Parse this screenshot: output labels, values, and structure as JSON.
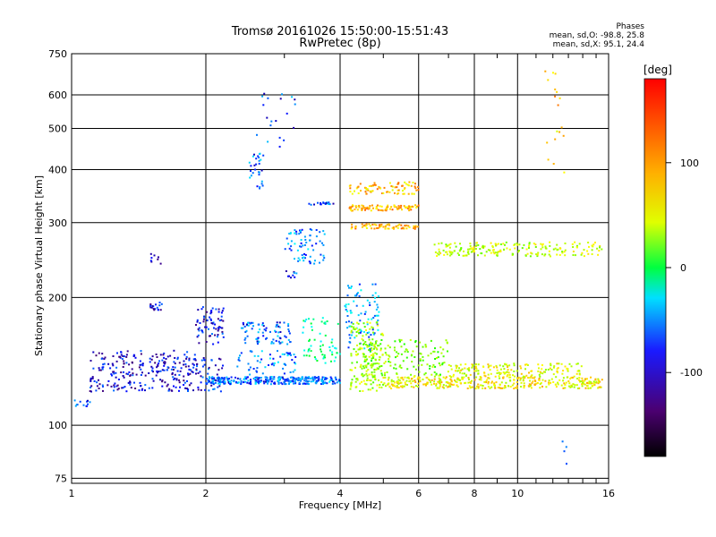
{
  "header": {
    "title_line1": "Tromsø 20161026 15:50:00-15:51:43",
    "title_line2": "RwPretec (8p)",
    "stats_title": "Phases",
    "stats_o": "mean, sd,O: -98.8, 25.8",
    "stats_x": "mean, sd,X:  95.1, 24.4"
  },
  "colors": {
    "axis": "#000000",
    "grid": "#000000",
    "background": "#ffffff"
  },
  "chart_data": {
    "type": "scatter",
    "title": "Tromsø 20161026 15:50:00-15:51:43",
    "subtitle": "RwPretec (8p)",
    "xlabel": "Frequency [MHz]",
    "ylabel": "Stationary phase Virtual Height [km]",
    "xscale": "log",
    "yscale": "log",
    "xlim": [
      1,
      16
    ],
    "ylim": [
      73,
      750
    ],
    "xticks": [
      1,
      2,
      4,
      6,
      8,
      10,
      16
    ],
    "xtick_labels": [
      "1",
      "2",
      "4",
      "6",
      "8",
      "10",
      "16"
    ],
    "yticks": [
      75,
      100,
      200,
      300,
      400,
      500,
      600,
      750
    ],
    "ytick_labels": [
      "75",
      "100",
      "200",
      "300",
      "400",
      "500",
      "600",
      "750"
    ],
    "grid": true,
    "colorbar": {
      "label": "[deg]",
      "range": [
        -180,
        180
      ],
      "ticks": [
        100,
        0,
        -100
      ],
      "tick_labels": [
        "100",
        "0",
        "-100"
      ]
    },
    "clusters": [
      {
        "x": [
          1.0,
          1.1
        ],
        "y": [
          110,
          115
        ],
        "phase": -110,
        "n": 12
      },
      {
        "x": [
          1.1,
          1.9
        ],
        "y": [
          120,
          150
        ],
        "phase": -140,
        "n": 260
      },
      {
        "x": [
          1.5,
          1.6
        ],
        "y": [
          185,
          195
        ],
        "phase": -140,
        "n": 18
      },
      {
        "x": [
          1.5,
          1.6
        ],
        "y": [
          240,
          255
        ],
        "phase": -130,
        "n": 8
      },
      {
        "x": [
          1.9,
          2.2
        ],
        "y": [
          155,
          190
        ],
        "phase": -135,
        "n": 70
      },
      {
        "x": [
          1.9,
          2.2
        ],
        "y": [
          120,
          145
        ],
        "phase": -130,
        "n": 50
      },
      {
        "x": [
          2.0,
          4.0
        ],
        "y": [
          125,
          130
        ],
        "phase": -105,
        "n": 300
      },
      {
        "x": [
          2.4,
          3.1
        ],
        "y": [
          155,
          175
        ],
        "phase": -110,
        "n": 80
      },
      {
        "x": [
          2.3,
          3.2
        ],
        "y": [
          130,
          150
        ],
        "phase": -100,
        "n": 60
      },
      {
        "x": [
          2.5,
          2.7
        ],
        "y": [
          360,
          440
        ],
        "phase": -110,
        "n": 30
      },
      {
        "x": [
          2.6,
          3.2
        ],
        "y": [
          450,
          610
        ],
        "phase": -115,
        "n": 20
      },
      {
        "x": [
          3.0,
          3.7
        ],
        "y": [
          240,
          290
        ],
        "phase": -100,
        "n": 70
      },
      {
        "x": [
          3.0,
          3.2
        ],
        "y": [
          222,
          235
        ],
        "phase": -120,
        "n": 10
      },
      {
        "x": [
          3.4,
          3.9
        ],
        "y": [
          330,
          335
        ],
        "phase": -115,
        "n": 18
      },
      {
        "x": [
          3.3,
          4.0
        ],
        "y": [
          140,
          180
        ],
        "phase": -40,
        "n": 60
      },
      {
        "x": [
          4.1,
          4.9
        ],
        "y": [
          150,
          215
        ],
        "phase": -95,
        "n": 90
      },
      {
        "x": [
          4.2,
          5.0
        ],
        "y": [
          120,
          175
        ],
        "phase": 60,
        "n": 150
      },
      {
        "x": [
          4.2,
          6.0
        ],
        "y": [
          350,
          375
        ],
        "phase": 110,
        "n": 80
      },
      {
        "x": [
          4.2,
          6.0
        ],
        "y": [
          320,
          330
        ],
        "phase": 120,
        "n": 90
      },
      {
        "x": [
          4.2,
          6.0
        ],
        "y": [
          290,
          298
        ],
        "phase": 115,
        "n": 70
      },
      {
        "x": [
          4.5,
          7.0
        ],
        "y": [
          130,
          160
        ],
        "phase": 40,
        "n": 160
      },
      {
        "x": [
          5.0,
          15.5
        ],
        "y": [
          122,
          130
        ],
        "phase": 90,
        "n": 380
      },
      {
        "x": [
          6.5,
          15.5
        ],
        "y": [
          250,
          270
        ],
        "phase": 70,
        "n": 200
      },
      {
        "x": [
          7.0,
          14.0
        ],
        "y": [
          130,
          140
        ],
        "phase": 80,
        "n": 160
      },
      {
        "x": [
          11.5,
          13.0
        ],
        "y": [
          380,
          700
        ],
        "phase": 110,
        "n": 18
      },
      {
        "x": [
          12.5,
          13.0
        ],
        "y": [
          78,
          95
        ],
        "phase": -100,
        "n": 4
      }
    ]
  }
}
